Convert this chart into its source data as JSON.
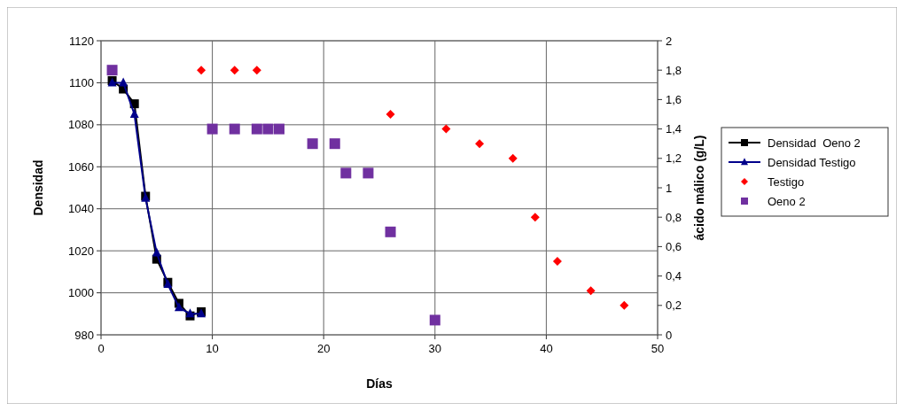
{
  "chart_data": {
    "type": "line",
    "xlabel": "Días",
    "ylabel": "Densidad",
    "y2label": "ácido málico (g/L)",
    "xlim": [
      0,
      50
    ],
    "xticks": [
      0,
      10,
      20,
      30,
      40,
      50
    ],
    "ylim": [
      980,
      1120
    ],
    "yticks": [
      980,
      1000,
      1020,
      1040,
      1060,
      1080,
      1100,
      1120
    ],
    "y2lim": [
      0,
      2
    ],
    "y2ticks": [
      0,
      {
        "value": 0.2,
        "label": "0,2"
      },
      {
        "value": 0.4,
        "label": "0,4"
      },
      {
        "value": 0.6,
        "label": "0,6"
      },
      {
        "value": 0.8,
        "label": "0,8"
      },
      1,
      {
        "value": 1.2,
        "label": "1,2"
      },
      {
        "value": 1.4,
        "label": "1,4"
      },
      {
        "value": 1.6,
        "label": "1,6"
      },
      {
        "value": 1.8,
        "label": "1,8"
      },
      2
    ],
    "grid": true,
    "legend": "right",
    "line_style": "solid",
    "series": [
      {
        "name": "Densidad  Oeno 2",
        "marker": "square",
        "color": "#000000",
        "x": [
          1,
          2,
          3,
          4,
          5,
          6,
          7,
          8,
          9
        ],
        "values": [
          1101,
          1097,
          1090,
          1046,
          1016,
          1005,
          995,
          989,
          991
        ]
      },
      {
        "name": "Densidad Testigo",
        "marker": "triangle",
        "color": "#00008b",
        "x": [
          1,
          2,
          3,
          4,
          5,
          6,
          7,
          8,
          9
        ],
        "values": [
          1100,
          1100,
          1085,
          1045,
          1019,
          1004,
          993,
          990,
          990
        ]
      },
      {
        "name": "Testigo",
        "type": "scatter",
        "marker": "diamond",
        "axis": "y2",
        "color": "#ff0000",
        "x": [
          9,
          12,
          14,
          26,
          31,
          34,
          37,
          39,
          41,
          44,
          47
        ],
        "values": [
          1.8,
          1.8,
          1.8,
          1.5,
          1.4,
          1.3,
          1.2,
          0.8,
          0.5,
          0.3,
          0.2
        ]
      },
      {
        "name": "Oeno 2",
        "type": "scatter",
        "marker": "square",
        "axis": "y2",
        "color": "#7030a0",
        "x": [
          1,
          10,
          12,
          14,
          15,
          16,
          19,
          21,
          22,
          24,
          26,
          30
        ],
        "values": [
          1.8,
          1.4,
          1.4,
          1.4,
          1.4,
          1.4,
          1.3,
          1.3,
          1.1,
          1.1,
          0.7,
          0.1
        ]
      }
    ]
  }
}
